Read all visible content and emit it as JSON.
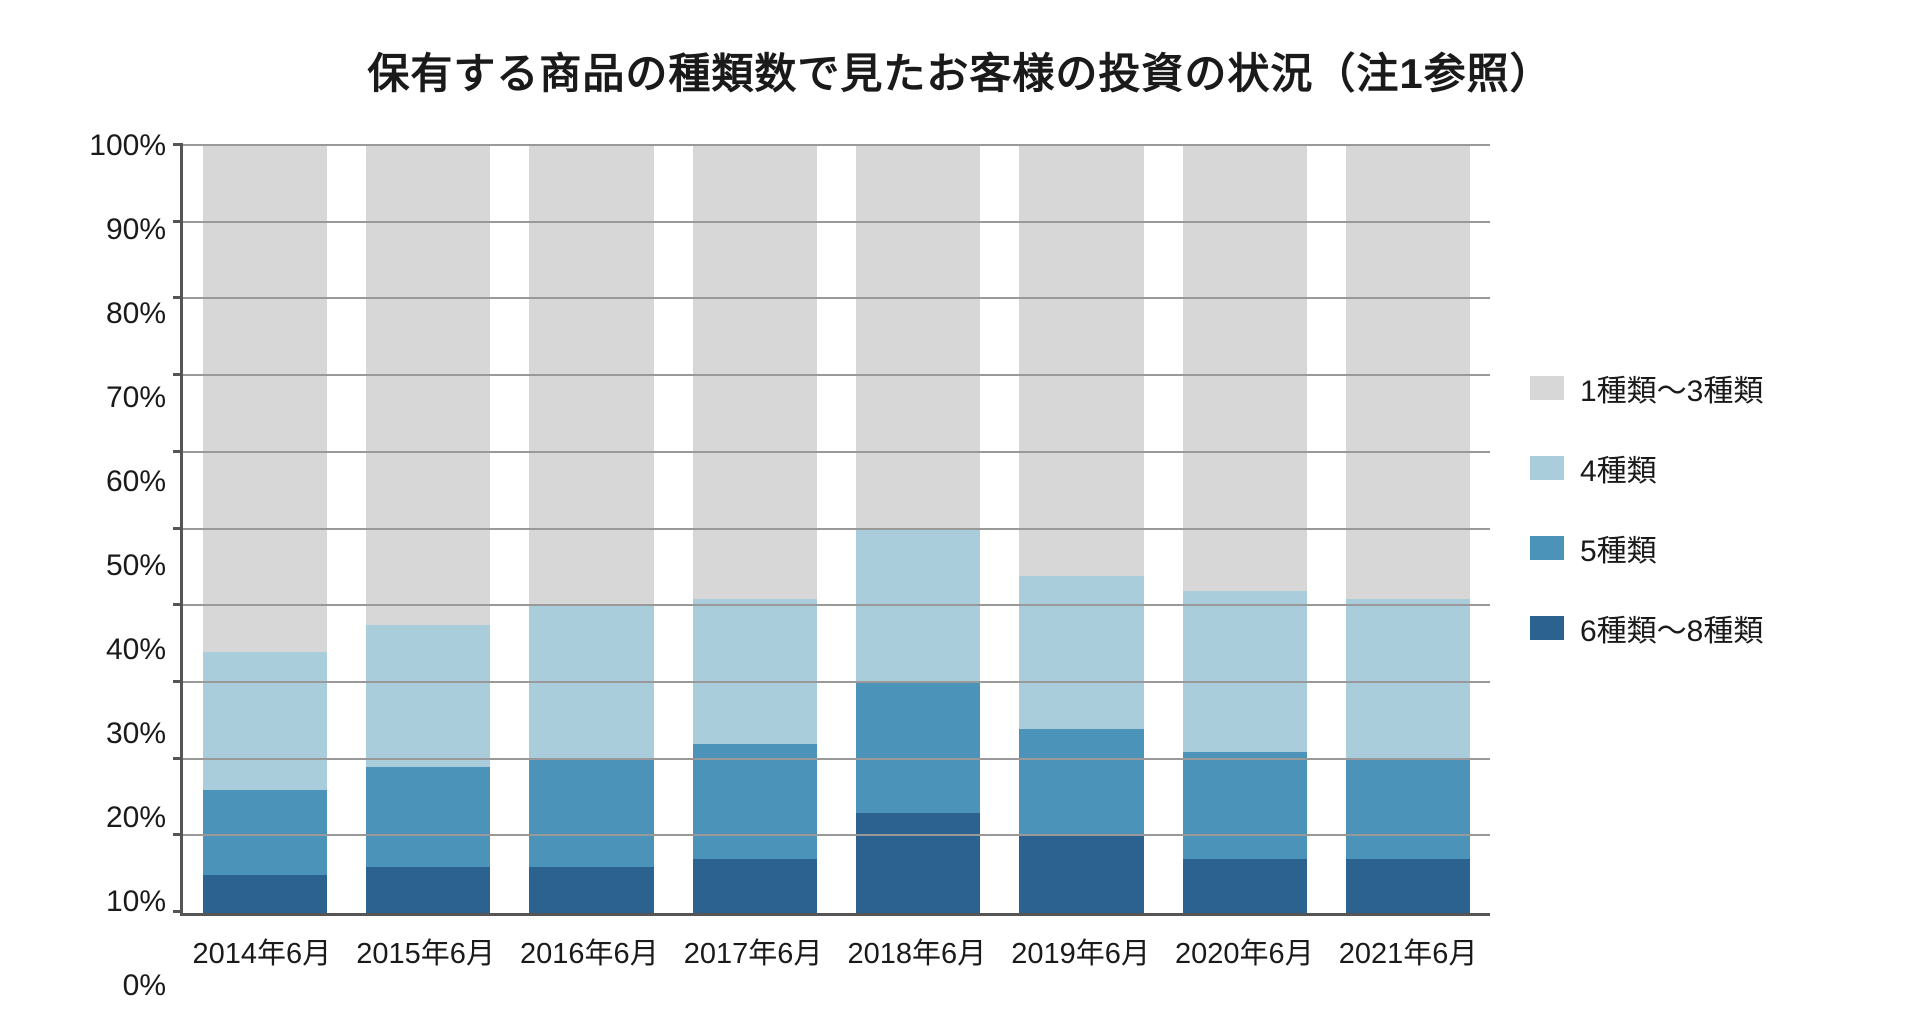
{
  "chart": {
    "type": "stacked-bar-100",
    "title": "保有する商品の種類数で見たお客様の投資の状況（注1参照）",
    "title_fontsize": 42,
    "title_fontweight": 700,
    "background_color": "#ffffff",
    "axis_color": "#555555",
    "grid_color": "#999999",
    "text_color": "#1a1a1a",
    "label_fontsize": 30,
    "xlabel_fontsize": 29,
    "bar_width_ratio": 0.76,
    "y": {
      "min": 0,
      "max": 100,
      "tick_step": 10,
      "tick_suffix": "%",
      "ticks": [
        0,
        10,
        20,
        30,
        40,
        50,
        60,
        70,
        80,
        90,
        100
      ]
    },
    "categories": [
      "2014年6月",
      "2015年6月",
      "2016年6月",
      "2017年6月",
      "2018年6月",
      "2019年6月",
      "2020年6月",
      "2021年6月"
    ],
    "series": [
      {
        "key": "s6_8",
        "label": "6種類～8種類",
        "color": "#2c628f"
      },
      {
        "key": "s5",
        "label": "5種類",
        "color": "#4b93b9"
      },
      {
        "key": "s4",
        "label": "4種類",
        "color": "#aacddc"
      },
      {
        "key": "s1_3",
        "label": "1種類～3種類",
        "color": "#d7d7d7"
      }
    ],
    "legend_order": [
      "s1_3",
      "s4",
      "s5",
      "s6_8"
    ],
    "data": {
      "s6_8": [
        5,
        6,
        6,
        7,
        13,
        10,
        7,
        7
      ],
      "s5": [
        11,
        13,
        14,
        15,
        17,
        14,
        14,
        13
      ],
      "s4": [
        18,
        18.5,
        20,
        19,
        20,
        20,
        21,
        21
      ],
      "s1_3": [
        66,
        62.5,
        60,
        59,
        50,
        56,
        58,
        59
      ]
    },
    "legend": {
      "swatch_w": 34,
      "swatch_h": 24,
      "fontsize": 30,
      "gap": 36
    }
  }
}
